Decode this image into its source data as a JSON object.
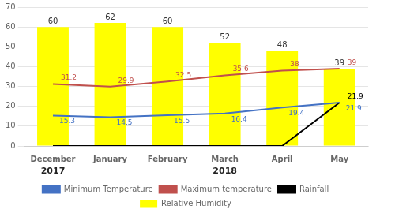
{
  "chart_data": {
    "type": "bar",
    "categories": [
      "December",
      "January",
      "February",
      "March",
      "April",
      "May"
    ],
    "series": [
      {
        "name": "Relative Humidity",
        "type": "bar",
        "color": "#FFFF00",
        "values": [
          60,
          62,
          60,
          52,
          48,
          39
        ]
      },
      {
        "name": "Minimum Temperature",
        "type": "line",
        "color": "#4472C4",
        "values": [
          15.3,
          14.5,
          15.5,
          16.4,
          19.4,
          21.9
        ]
      },
      {
        "name": "Maximum temperature",
        "type": "line",
        "color": "#C0504D",
        "values": [
          31.2,
          29.9,
          32.5,
          35.6,
          38,
          39
        ]
      },
      {
        "name": "Rainfall",
        "type": "line",
        "color": "#000000",
        "values": [
          0,
          0,
          0,
          0,
          0,
          21.9
        ],
        "value_labels": [
          null,
          null,
          null,
          null,
          null,
          "21.9"
        ]
      }
    ],
    "ylim": [
      0,
      70
    ],
    "yticks": [
      0,
      10,
      20,
      30,
      40,
      50,
      60,
      70
    ],
    "grid": true,
    "legend": "bottom",
    "data_labels": true,
    "annotations": [
      {
        "text": "2017",
        "x": "December"
      },
      {
        "text": "2018",
        "x": "March"
      }
    ]
  }
}
